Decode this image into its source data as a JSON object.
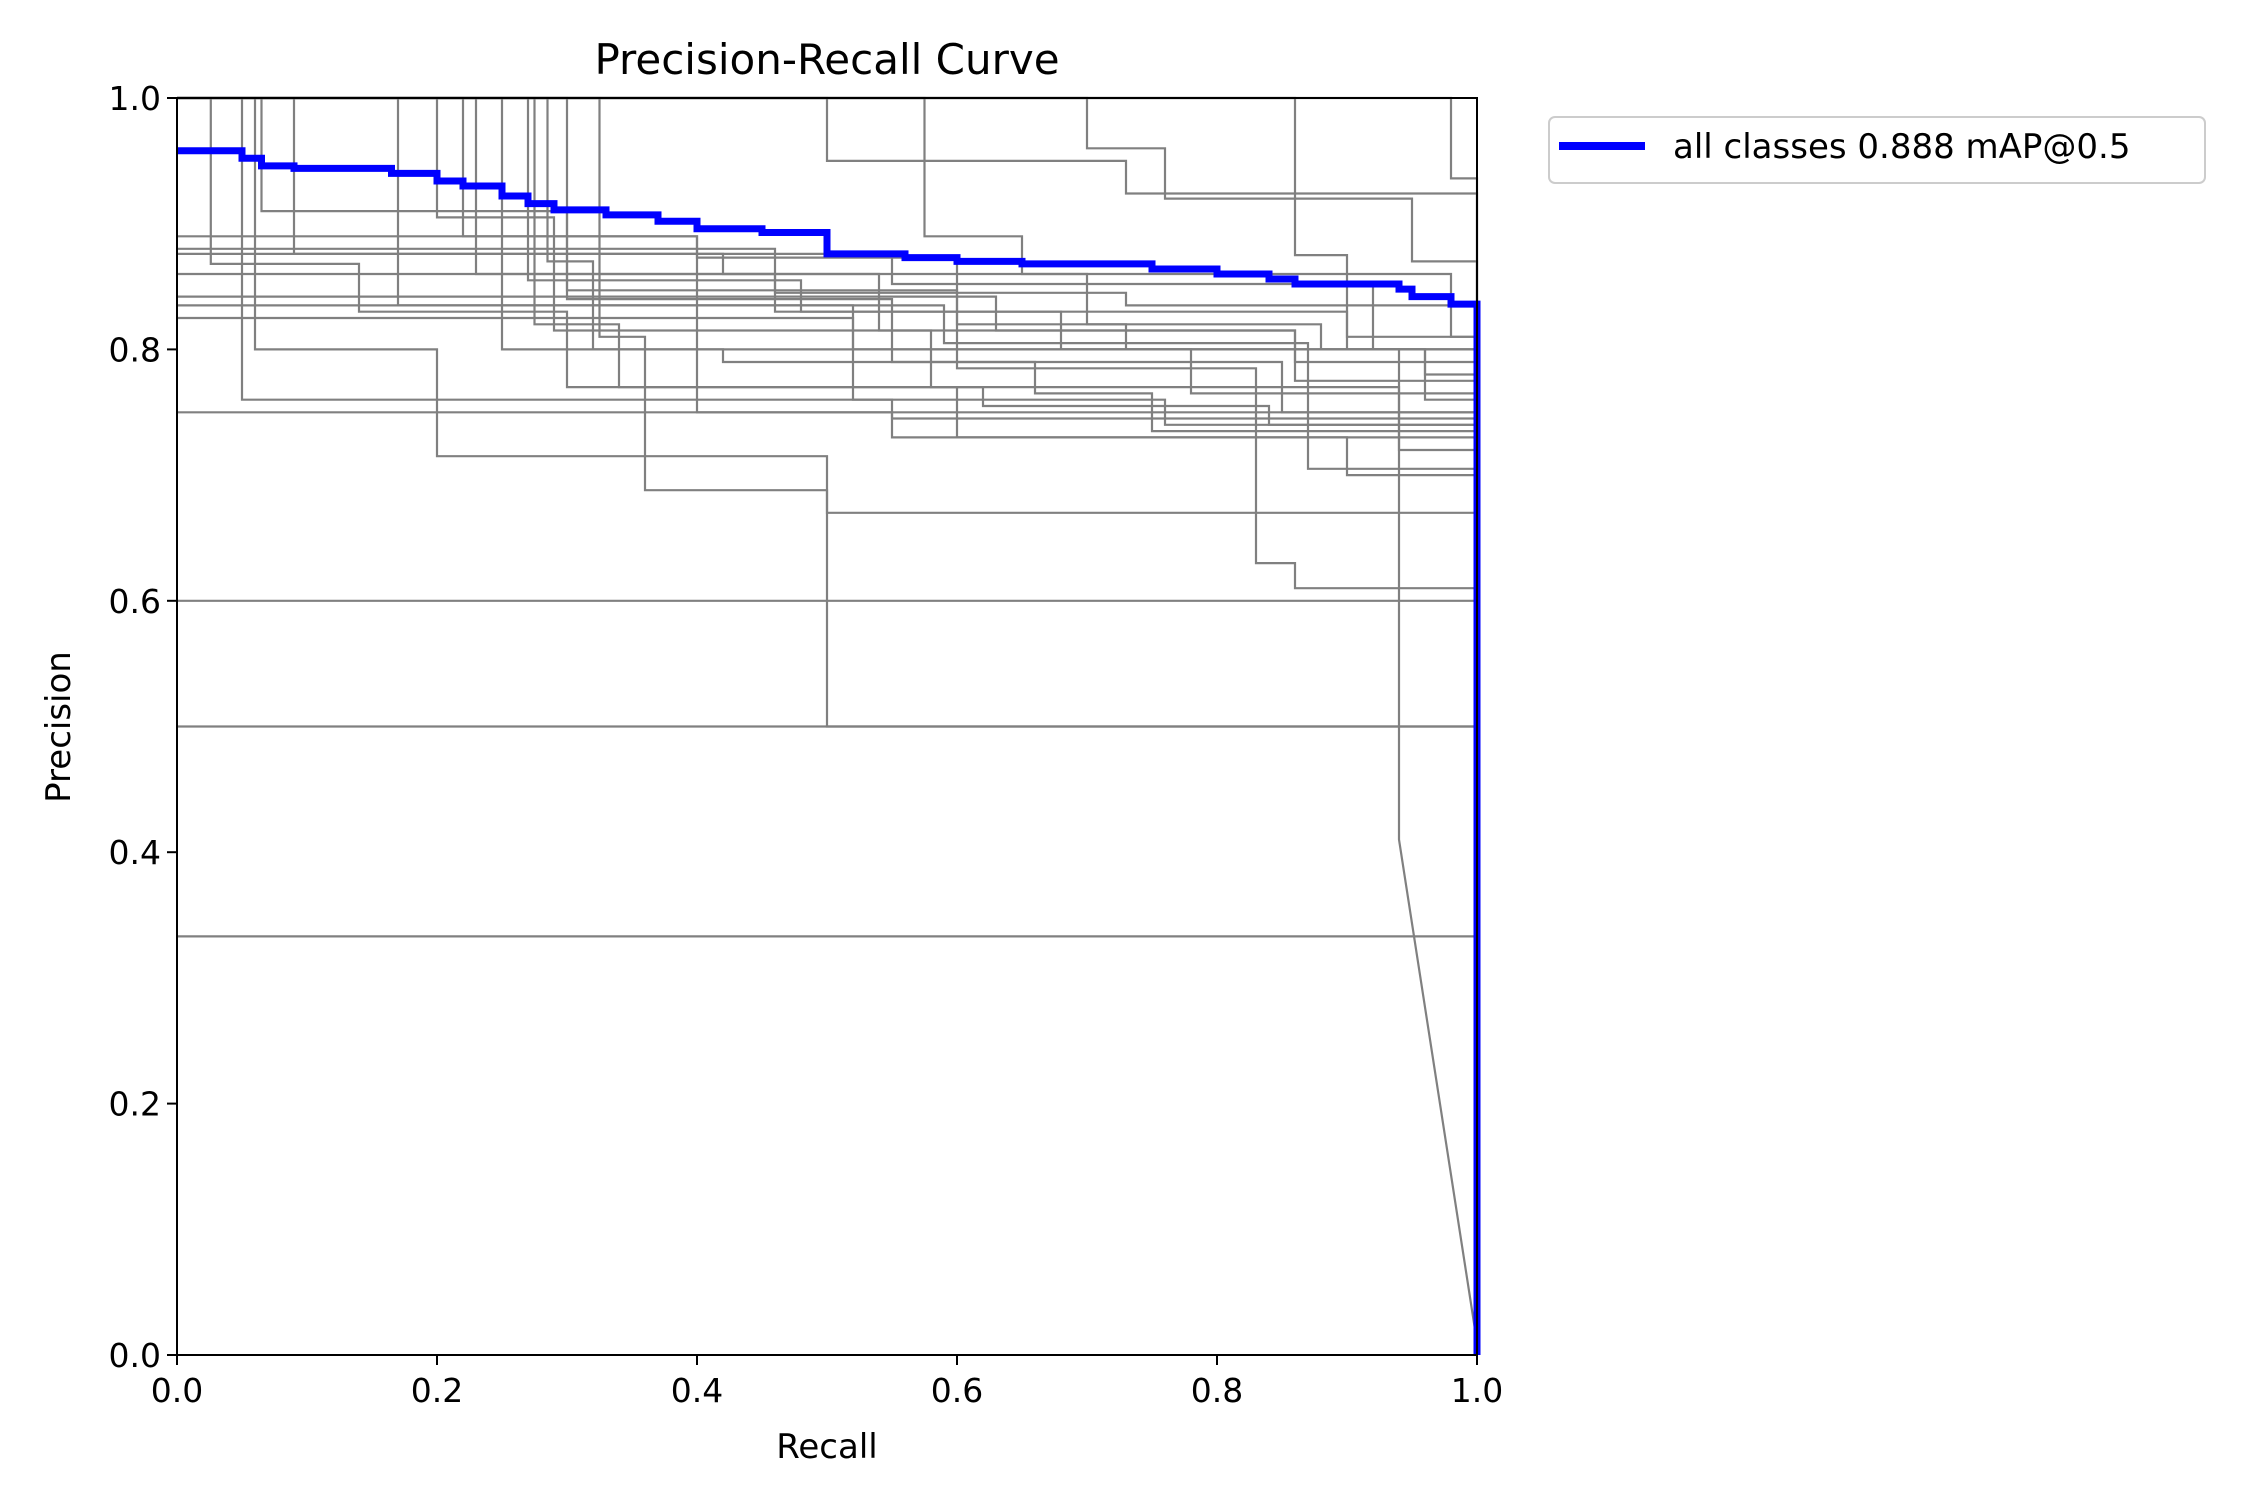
{
  "chart_data": {
    "type": "line",
    "title": "Precision-Recall Curve",
    "xlabel": "Recall",
    "ylabel": "Precision",
    "xlim": [
      0,
      1
    ],
    "ylim": [
      0,
      1
    ],
    "xticks": [
      "0.0",
      "0.2",
      "0.4",
      "0.6",
      "0.8",
      "1.0"
    ],
    "yticks": [
      "0.0",
      "0.2",
      "0.4",
      "0.6",
      "0.8",
      "1.0"
    ],
    "grid": false,
    "legend_position": "outside-top-right",
    "colors": {
      "per_class": "#808080",
      "aggregate": "#0000ff"
    },
    "aggregate_series": {
      "name": "all classes 0.888 mAP@0.5",
      "points": [
        [
          0.0,
          0.958
        ],
        [
          0.05,
          0.958
        ],
        [
          0.05,
          0.952
        ],
        [
          0.065,
          0.952
        ],
        [
          0.065,
          0.946
        ],
        [
          0.09,
          0.946
        ],
        [
          0.09,
          0.944
        ],
        [
          0.165,
          0.944
        ],
        [
          0.165,
          0.94
        ],
        [
          0.2,
          0.94
        ],
        [
          0.2,
          0.934
        ],
        [
          0.22,
          0.934
        ],
        [
          0.22,
          0.93
        ],
        [
          0.25,
          0.93
        ],
        [
          0.25,
          0.922
        ],
        [
          0.27,
          0.922
        ],
        [
          0.27,
          0.916
        ],
        [
          0.29,
          0.916
        ],
        [
          0.29,
          0.911
        ],
        [
          0.33,
          0.911
        ],
        [
          0.33,
          0.907
        ],
        [
          0.37,
          0.907
        ],
        [
          0.37,
          0.902
        ],
        [
          0.4,
          0.902
        ],
        [
          0.4,
          0.896
        ],
        [
          0.45,
          0.896
        ],
        [
          0.45,
          0.893
        ],
        [
          0.5,
          0.893
        ],
        [
          0.5,
          0.876
        ],
        [
          0.56,
          0.876
        ],
        [
          0.56,
          0.873
        ],
        [
          0.6,
          0.873
        ],
        [
          0.6,
          0.87
        ],
        [
          0.65,
          0.87
        ],
        [
          0.65,
          0.868
        ],
        [
          0.75,
          0.868
        ],
        [
          0.75,
          0.864
        ],
        [
          0.8,
          0.864
        ],
        [
          0.8,
          0.86
        ],
        [
          0.84,
          0.86
        ],
        [
          0.84,
          0.856
        ],
        [
          0.86,
          0.856
        ],
        [
          0.86,
          0.852
        ],
        [
          0.94,
          0.852
        ],
        [
          0.94,
          0.848
        ],
        [
          0.95,
          0.848
        ],
        [
          0.95,
          0.842
        ],
        [
          0.98,
          0.842
        ],
        [
          0.98,
          0.836
        ],
        [
          1.0,
          0.836
        ],
        [
          1.0,
          0.0
        ]
      ]
    },
    "class_series": [
      {
        "points": [
          [
            0,
            1.0
          ],
          [
            0.026,
            1.0
          ],
          [
            0.026,
            0.868
          ],
          [
            0.14,
            0.868
          ],
          [
            0.14,
            0.83
          ],
          [
            0.3,
            0.83
          ],
          [
            0.3,
            0.77
          ],
          [
            0.6,
            0.77
          ],
          [
            0.6,
            0.73
          ],
          [
            0.9,
            0.73
          ],
          [
            0.9,
            0.7
          ],
          [
            1.0,
            0.7
          ],
          [
            1.0,
            0
          ]
        ]
      },
      {
        "points": [
          [
            0,
            1.0
          ],
          [
            0.05,
            1.0
          ],
          [
            0.05,
            0.76
          ],
          [
            0.55,
            0.76
          ],
          [
            0.55,
            0.745
          ],
          [
            1.0,
            0.745
          ],
          [
            1.0,
            0
          ]
        ]
      },
      {
        "points": [
          [
            0,
            1.0
          ],
          [
            0.06,
            1.0
          ],
          [
            0.06,
            0.8
          ],
          [
            0.2,
            0.8
          ],
          [
            0.2,
            0.715
          ],
          [
            0.5,
            0.715
          ],
          [
            0.5,
            0.67
          ],
          [
            1.0,
            0.67
          ],
          [
            1.0,
            0
          ]
        ]
      },
      {
        "points": [
          [
            0,
            1.0
          ],
          [
            0.065,
            1.0
          ],
          [
            0.065,
            0.91
          ],
          [
            0.3,
            0.91
          ],
          [
            0.3,
            0.84
          ],
          [
            0.55,
            0.84
          ],
          [
            0.55,
            0.79
          ],
          [
            0.85,
            0.79
          ],
          [
            0.85,
            0.75
          ],
          [
            1.0,
            0.75
          ],
          [
            1.0,
            0
          ]
        ]
      },
      {
        "points": [
          [
            0,
            1.0
          ],
          [
            0.09,
            1.0
          ],
          [
            0.09,
            0.876
          ],
          [
            0.42,
            0.876
          ],
          [
            0.42,
            0.86
          ],
          [
            0.7,
            0.86
          ],
          [
            0.7,
            0.82
          ],
          [
            0.88,
            0.82
          ],
          [
            0.88,
            0.8
          ],
          [
            1.0,
            0.8
          ],
          [
            1.0,
            0
          ]
        ]
      },
      {
        "points": [
          [
            0,
            1.0
          ],
          [
            0.17,
            1.0
          ],
          [
            0.17,
            0.835
          ],
          [
            0.52,
            0.835
          ],
          [
            0.52,
            0.8
          ],
          [
            0.78,
            0.8
          ],
          [
            0.78,
            0.765
          ],
          [
            1.0,
            0.765
          ],
          [
            1.0,
            0
          ]
        ]
      },
      {
        "points": [
          [
            0,
            1.0
          ],
          [
            0.2,
            1.0
          ],
          [
            0.2,
            0.905
          ],
          [
            0.29,
            0.905
          ],
          [
            0.29,
            0.815
          ],
          [
            0.58,
            0.815
          ],
          [
            0.58,
            0.77
          ],
          [
            0.94,
            0.77
          ],
          [
            0.94,
            0.72
          ],
          [
            1.0,
            0.72
          ],
          [
            1.0,
            0
          ]
        ]
      },
      {
        "points": [
          [
            0,
            1.0
          ],
          [
            0.22,
            1.0
          ],
          [
            0.22,
            0.89
          ],
          [
            0.4,
            0.89
          ],
          [
            0.4,
            0.75
          ],
          [
            0.55,
            0.75
          ],
          [
            0.55,
            0.73
          ],
          [
            1.0,
            0.73
          ],
          [
            1.0,
            0
          ]
        ]
      },
      {
        "points": [
          [
            0,
            1.0
          ],
          [
            0.23,
            1.0
          ],
          [
            0.23,
            0.86
          ],
          [
            0.46,
            0.86
          ],
          [
            0.46,
            0.845
          ],
          [
            0.73,
            0.845
          ],
          [
            0.73,
            0.835
          ],
          [
            1.0,
            0.835
          ],
          [
            1.0,
            0
          ]
        ]
      },
      {
        "points": [
          [
            0,
            1.0
          ],
          [
            0.25,
            1.0
          ],
          [
            0.25,
            0.8
          ],
          [
            0.6,
            0.8
          ],
          [
            0.6,
            0.785
          ],
          [
            0.83,
            0.785
          ],
          [
            0.83,
            0.63
          ],
          [
            0.86,
            0.63
          ],
          [
            0.86,
            0.61
          ],
          [
            1.0,
            0.61
          ],
          [
            1.0,
            0
          ]
        ]
      },
      {
        "points": [
          [
            0,
            1.0
          ],
          [
            0.27,
            1.0
          ],
          [
            0.27,
            0.855
          ],
          [
            0.48,
            0.855
          ],
          [
            0.48,
            0.83
          ],
          [
            0.9,
            0.83
          ],
          [
            0.9,
            0.81
          ],
          [
            1.0,
            0.81
          ],
          [
            1.0,
            0
          ]
        ]
      },
      {
        "points": [
          [
            0,
            1.0
          ],
          [
            0.275,
            1.0
          ],
          [
            0.275,
            0.82
          ],
          [
            0.34,
            0.82
          ],
          [
            0.34,
            0.77
          ],
          [
            0.62,
            0.77
          ],
          [
            0.62,
            0.755
          ],
          [
            0.84,
            0.755
          ],
          [
            0.84,
            0.74
          ],
          [
            1.0,
            0.74
          ],
          [
            1.0,
            0
          ]
        ]
      },
      {
        "points": [
          [
            0,
            1.0
          ],
          [
            0.285,
            1.0
          ],
          [
            0.285,
            0.87
          ],
          [
            0.32,
            0.87
          ],
          [
            0.32,
            0.8
          ],
          [
            0.42,
            0.8
          ],
          [
            0.42,
            0.79
          ],
          [
            0.66,
            0.79
          ],
          [
            0.66,
            0.765
          ],
          [
            0.75,
            0.765
          ],
          [
            0.75,
            0.735
          ],
          [
            1.0,
            0.735
          ],
          [
            1.0,
            0
          ]
        ]
      },
      {
        "points": [
          [
            0,
            1.0
          ],
          [
            0.3,
            1.0
          ],
          [
            0.3,
            0.847
          ],
          [
            0.6,
            0.847
          ],
          [
            0.6,
            0.82
          ],
          [
            0.73,
            0.82
          ],
          [
            0.73,
            0.8
          ],
          [
            1.0,
            0.8
          ],
          [
            1.0,
            0
          ]
        ]
      },
      {
        "points": [
          [
            0,
            1.0
          ],
          [
            0.325,
            1.0
          ],
          [
            0.325,
            0.81
          ],
          [
            0.36,
            0.81
          ],
          [
            0.36,
            0.688
          ],
          [
            0.5,
            0.688
          ],
          [
            0.5,
            0.5
          ],
          [
            1.0,
            0.5
          ],
          [
            1.0,
            0
          ]
        ]
      },
      {
        "points": [
          [
            0,
            1.0
          ],
          [
            0.5,
            1.0
          ],
          [
            0.5,
            0.95
          ],
          [
            0.73,
            0.95
          ],
          [
            0.73,
            0.924
          ],
          [
            1.0,
            0.924
          ],
          [
            1.0,
            0
          ]
        ]
      },
      {
        "points": [
          [
            0,
            1.0
          ],
          [
            0.575,
            1.0
          ],
          [
            0.575,
            0.89
          ],
          [
            0.65,
            0.89
          ],
          [
            0.65,
            0.86
          ],
          [
            0.98,
            0.86
          ],
          [
            0.98,
            0.81
          ],
          [
            1.0,
            0.81
          ],
          [
            1.0,
            0
          ]
        ]
      },
      {
        "points": [
          [
            0,
            1.0
          ],
          [
            0.7,
            1.0
          ],
          [
            0.7,
            0.96
          ],
          [
            0.76,
            0.96
          ],
          [
            0.76,
            0.92
          ],
          [
            0.95,
            0.92
          ],
          [
            0.95,
            0.87
          ],
          [
            1.0,
            0.87
          ],
          [
            1.0,
            0
          ]
        ]
      },
      {
        "points": [
          [
            0,
            1.0
          ],
          [
            0.86,
            1.0
          ],
          [
            0.86,
            0.875
          ],
          [
            0.9,
            0.875
          ],
          [
            0.9,
            0.8
          ],
          [
            0.94,
            0.8
          ],
          [
            0.94,
            0.41
          ],
          [
            1.0,
            0.01
          ],
          [
            1.0,
            0
          ]
        ]
      },
      {
        "points": [
          [
            0,
            1.0
          ],
          [
            0.98,
            1.0
          ],
          [
            0.98,
            0.936
          ],
          [
            1.0,
            0.936
          ],
          [
            1.0,
            0
          ]
        ]
      },
      {
        "points": [
          [
            0,
            0.89
          ],
          [
            0.4,
            0.89
          ],
          [
            0.4,
            0.873
          ],
          [
            0.6,
            0.873
          ],
          [
            0.6,
            0.8
          ],
          [
            0.96,
            0.8
          ],
          [
            0.96,
            0.76
          ],
          [
            1.0,
            0.76
          ],
          [
            1.0,
            0
          ]
        ]
      },
      {
        "points": [
          [
            0,
            0.88
          ],
          [
            0.46,
            0.88
          ],
          [
            0.46,
            0.83
          ],
          [
            0.68,
            0.83
          ],
          [
            0.68,
            0.8
          ],
          [
            0.96,
            0.8
          ],
          [
            0.96,
            0.78
          ],
          [
            1.0,
            0.78
          ],
          [
            1.0,
            0
          ]
        ]
      },
      {
        "points": [
          [
            0,
            0.86
          ],
          [
            0.54,
            0.86
          ],
          [
            0.54,
            0.815
          ],
          [
            0.86,
            0.815
          ],
          [
            0.86,
            0.79
          ],
          [
            1.0,
            0.79
          ],
          [
            1.0,
            0
          ]
        ]
      },
      {
        "points": [
          [
            0,
            0.842
          ],
          [
            0.63,
            0.842
          ],
          [
            0.63,
            0.815
          ],
          [
            0.86,
            0.815
          ],
          [
            0.86,
            0.775
          ],
          [
            1.0,
            0.775
          ],
          [
            1.0,
            0
          ]
        ]
      },
      {
        "points": [
          [
            0,
            0.835
          ],
          [
            0.59,
            0.835
          ],
          [
            0.59,
            0.805
          ],
          [
            0.87,
            0.805
          ],
          [
            0.87,
            0.705
          ],
          [
            1.0,
            0.705
          ],
          [
            1.0,
            0
          ]
        ]
      },
      {
        "points": [
          [
            0,
            0.825
          ],
          [
            0.52,
            0.825
          ],
          [
            0.52,
            0.76
          ],
          [
            0.76,
            0.76
          ],
          [
            0.76,
            0.74
          ],
          [
            1.0,
            0.74
          ],
          [
            1.0,
            0
          ]
        ]
      },
      {
        "points": [
          [
            0,
            0.75
          ],
          [
            1.0,
            0.75
          ],
          [
            1.0,
            0
          ]
        ]
      },
      {
        "points": [
          [
            0,
            0.6
          ],
          [
            1.0,
            0.6
          ],
          [
            1.0,
            0
          ]
        ]
      },
      {
        "points": [
          [
            0,
            0.5
          ],
          [
            1.0,
            0.5
          ],
          [
            1.0,
            0
          ]
        ]
      },
      {
        "points": [
          [
            0,
            0.333
          ],
          [
            1.0,
            0.333
          ],
          [
            1.0,
            0
          ]
        ]
      },
      {
        "points": [
          [
            0,
            0.876
          ],
          [
            0.55,
            0.876
          ],
          [
            0.55,
            0.852
          ],
          [
            0.92,
            0.852
          ],
          [
            0.92,
            0.8
          ],
          [
            1.0,
            0.8
          ],
          [
            1.0,
            0
          ]
        ]
      }
    ]
  }
}
